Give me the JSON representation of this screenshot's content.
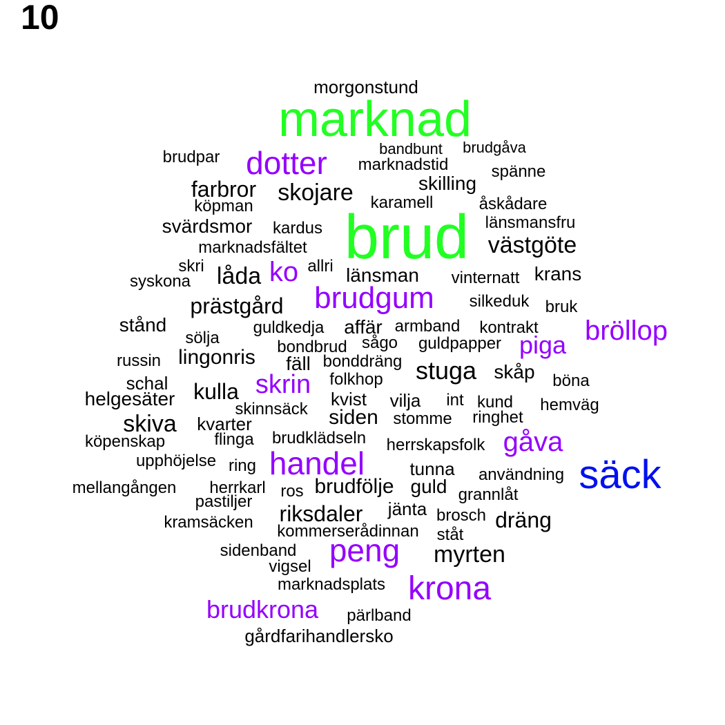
{
  "panel_label": "10",
  "colors": {
    "black": "#000000",
    "green": "#22ff22",
    "purple": "#9400ff",
    "blue": "#0010ee"
  },
  "words": [
    {
      "text": "morgonstund",
      "color": "black"
    },
    {
      "text": "marknad",
      "color": "green"
    },
    {
      "text": "bandbunt",
      "color": "black"
    },
    {
      "text": "brudgåva",
      "color": "black"
    },
    {
      "text": "brudpar",
      "color": "black"
    },
    {
      "text": "dotter",
      "color": "purple"
    },
    {
      "text": "marknadstid",
      "color": "black"
    },
    {
      "text": "spänne",
      "color": "black"
    },
    {
      "text": "skilling",
      "color": "black"
    },
    {
      "text": "farbror",
      "color": "black"
    },
    {
      "text": "skojare",
      "color": "black"
    },
    {
      "text": "köpman",
      "color": "black"
    },
    {
      "text": "karamell",
      "color": "black"
    },
    {
      "text": "åskådare",
      "color": "black"
    },
    {
      "text": "svärdsmor",
      "color": "black"
    },
    {
      "text": "kardus",
      "color": "black"
    },
    {
      "text": "brud",
      "color": "green"
    },
    {
      "text": "länsmansfru",
      "color": "black"
    },
    {
      "text": "marknadsfältet",
      "color": "black"
    },
    {
      "text": "västgöte",
      "color": "black"
    },
    {
      "text": "skri",
      "color": "black"
    },
    {
      "text": "allri",
      "color": "black"
    },
    {
      "text": "syskona",
      "color": "black"
    },
    {
      "text": "låda",
      "color": "black"
    },
    {
      "text": "ko",
      "color": "purple"
    },
    {
      "text": "länsman",
      "color": "black"
    },
    {
      "text": "vinternatt",
      "color": "black"
    },
    {
      "text": "krans",
      "color": "black"
    },
    {
      "text": "prästgård",
      "color": "black"
    },
    {
      "text": "brudgum",
      "color": "purple"
    },
    {
      "text": "silkeduk",
      "color": "black"
    },
    {
      "text": "bruk",
      "color": "black"
    },
    {
      "text": "stånd",
      "color": "black"
    },
    {
      "text": "guldkedja",
      "color": "black"
    },
    {
      "text": "affär",
      "color": "black"
    },
    {
      "text": "armband",
      "color": "black"
    },
    {
      "text": "kontrakt",
      "color": "black"
    },
    {
      "text": "bröllop",
      "color": "purple"
    },
    {
      "text": "sölja",
      "color": "black"
    },
    {
      "text": "bondbrud",
      "color": "black"
    },
    {
      "text": "sågo",
      "color": "black"
    },
    {
      "text": "guldpapper",
      "color": "black"
    },
    {
      "text": "piga",
      "color": "purple"
    },
    {
      "text": "russin",
      "color": "black"
    },
    {
      "text": "lingonris",
      "color": "black"
    },
    {
      "text": "fäll",
      "color": "black"
    },
    {
      "text": "bonddräng",
      "color": "black"
    },
    {
      "text": "stuga",
      "color": "black"
    },
    {
      "text": "skåp",
      "color": "black"
    },
    {
      "text": "schal",
      "color": "black"
    },
    {
      "text": "skrin",
      "color": "purple"
    },
    {
      "text": "folkhop",
      "color": "black"
    },
    {
      "text": "böna",
      "color": "black"
    },
    {
      "text": "helgesäter",
      "color": "black"
    },
    {
      "text": "kulla",
      "color": "black"
    },
    {
      "text": "kvist",
      "color": "black"
    },
    {
      "text": "vilja",
      "color": "black"
    },
    {
      "text": "int",
      "color": "black"
    },
    {
      "text": "kund",
      "color": "black"
    },
    {
      "text": "hemväg",
      "color": "black"
    },
    {
      "text": "skinnsäck",
      "color": "black"
    },
    {
      "text": "skiva",
      "color": "black"
    },
    {
      "text": "siden",
      "color": "black"
    },
    {
      "text": "stomme",
      "color": "black"
    },
    {
      "text": "ringhet",
      "color": "black"
    },
    {
      "text": "kvarter",
      "color": "black"
    },
    {
      "text": "köpenskap",
      "color": "black"
    },
    {
      "text": "flinga",
      "color": "black"
    },
    {
      "text": "brudklädseln",
      "color": "black"
    },
    {
      "text": "herrskapsfolk",
      "color": "black"
    },
    {
      "text": "gåva",
      "color": "purple"
    },
    {
      "text": "upphöjelse",
      "color": "black"
    },
    {
      "text": "ring",
      "color": "black"
    },
    {
      "text": "handel",
      "color": "purple"
    },
    {
      "text": "tunna",
      "color": "black"
    },
    {
      "text": "användning",
      "color": "black"
    },
    {
      "text": "säck",
      "color": "blue"
    },
    {
      "text": "mellangången",
      "color": "black"
    },
    {
      "text": "herrkarl",
      "color": "black"
    },
    {
      "text": "ros",
      "color": "black"
    },
    {
      "text": "brudfölje",
      "color": "black"
    },
    {
      "text": "guld",
      "color": "black"
    },
    {
      "text": "grannlåt",
      "color": "black"
    },
    {
      "text": "pastiljer",
      "color": "black"
    },
    {
      "text": "jänta",
      "color": "black"
    },
    {
      "text": "riksdaler",
      "color": "black"
    },
    {
      "text": "brosch",
      "color": "black"
    },
    {
      "text": "dräng",
      "color": "black"
    },
    {
      "text": "kramsäcken",
      "color": "black"
    },
    {
      "text": "kommerserådinnan",
      "color": "black"
    },
    {
      "text": "ståt",
      "color": "black"
    },
    {
      "text": "sidenband",
      "color": "black"
    },
    {
      "text": "peng",
      "color": "purple"
    },
    {
      "text": "myrten",
      "color": "black"
    },
    {
      "text": "vigsel",
      "color": "black"
    },
    {
      "text": "marknadsplats",
      "color": "black"
    },
    {
      "text": "krona",
      "color": "purple"
    },
    {
      "text": "brudkrona",
      "color": "purple"
    },
    {
      "text": "pärlband",
      "color": "black"
    },
    {
      "text": "gårdfarihandlersko",
      "color": "black"
    }
  ]
}
